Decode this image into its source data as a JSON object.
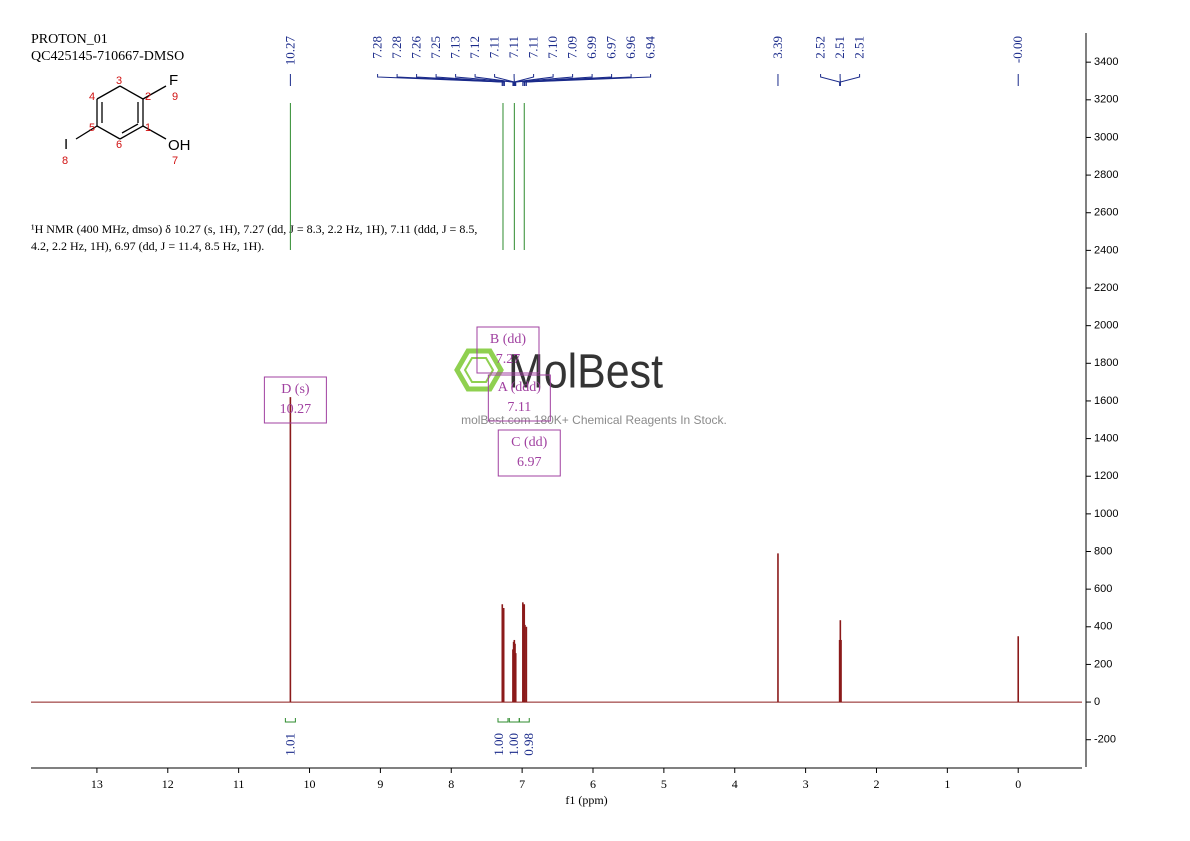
{
  "chart_data": {
    "type": "spectrum",
    "title": "PROTON_01",
    "subtitle": "QC425145-710667-DMSO",
    "description": [
      "¹H NMR (400 MHz, dmso) δ 10.27 (s, 1H), 7.27 (dd, J = 8.3, 2.2 Hz, 1H), 7.11 (ddd, J = 8.5,",
      "4.2, 2.2 Hz, 1H), 6.97 (dd, J = 11.4, 8.5 Hz, 1H)."
    ],
    "structure": {
      "atoms": [
        "F",
        "OH",
        "I"
      ],
      "numbers": [
        1,
        2,
        3,
        4,
        5,
        6,
        7,
        8,
        9
      ]
    },
    "watermark": {
      "brand": "MolBest",
      "tagline": "molBest.com 180K+ Chemical Reagents In Stock."
    },
    "peak_labels": [
      10.27,
      7.28,
      7.28,
      7.26,
      7.25,
      7.13,
      7.12,
      7.11,
      7.11,
      7.11,
      {
        "value": 7.1,
        "label": "7.10"
      },
      7.09,
      6.99,
      6.97,
      6.96,
      6.94,
      3.39,
      2.52,
      2.51,
      2.51,
      {
        "value": 0,
        "label": "-0.00"
      }
    ],
    "multiplets": [
      {
        "label": "D (s)",
        "shift": 10.27
      },
      {
        "label": "B (dd)",
        "shift": 7.27
      },
      {
        "label": "A (ddd)",
        "shift": 7.11
      },
      {
        "label": "C (dd)",
        "shift": 6.97
      }
    ],
    "integrals": {
      "x": [
        10.27,
        7.27,
        7.11,
        6.97
      ],
      "values": [
        1.01,
        1,
        1,
        0.98
      ],
      "value_labels": [
        "1.01",
        "1.00",
        "1.00",
        "0.98"
      ],
      "color": "#2e8b2e"
    },
    "series": [
      {
        "color": "#8b1a1a",
        "x": [
          10.27,
          7.28,
          7.26,
          7.13,
          7.12,
          7.11,
          7.1,
          7.09,
          6.99,
          6.97,
          6.96,
          6.94,
          3.39,
          2.52,
          2.51,
          2.5,
          0
        ],
        "values": [
          1620,
          520,
          500,
          280,
          320,
          330,
          310,
          260,
          530,
          520,
          410,
          400,
          790,
          330,
          435,
          330,
          350
        ]
      }
    ],
    "x_label": "f1 (ppm)",
    "xlim": [
      13.93,
      -0.9
    ],
    "xticks": [
      13,
      12,
      11,
      10,
      9,
      8,
      7,
      6,
      5,
      4,
      3,
      2,
      1,
      0
    ],
    "ylim": [
      -345,
      3555
    ],
    "yticks": [
      -200,
      0,
      200,
      400,
      600,
      800,
      1000,
      1200,
      1400,
      1600,
      1800,
      2000,
      2200,
      2400,
      2600,
      2800,
      3000,
      3200,
      3400
    ]
  }
}
